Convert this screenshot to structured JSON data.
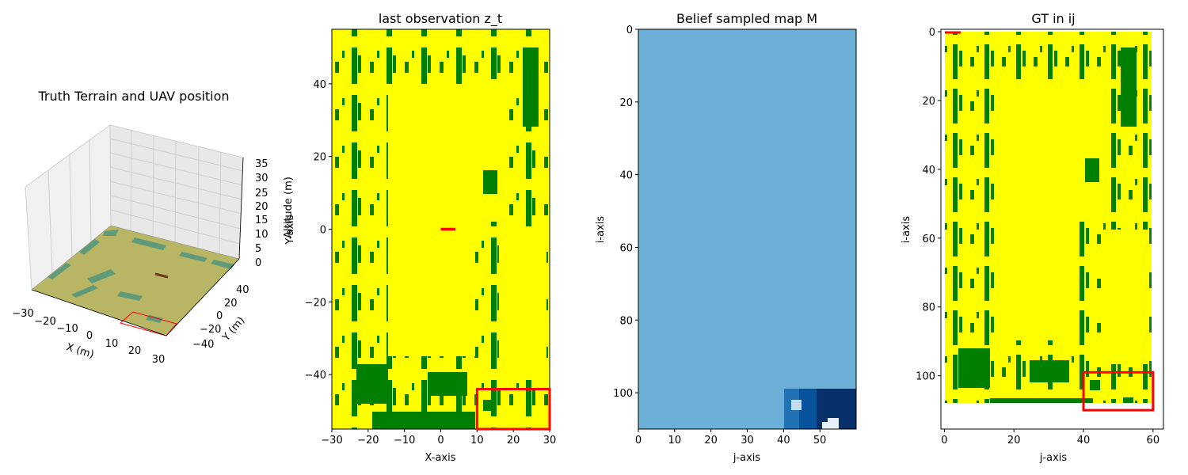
{
  "colors": {
    "free": "#ffff00",
    "tree": "#007f00",
    "path": "#ff0000",
    "belief_mid": "#6baed6",
    "belief_dark1": "#2171b5",
    "belief_dark2": "#08519c",
    "belief_dark3": "#08306b",
    "belief_light": "#c6dbef"
  },
  "chart_data": [
    {
      "type": "surface3d",
      "title": "Truth Terrain and UAV position",
      "xlabel": "X (m)",
      "ylabel": "Y (m)",
      "zlabel": "Altitude (m)",
      "xticks": [
        "−30",
        "−20",
        "−10",
        "0",
        "10",
        "20",
        "30"
      ],
      "yticks": [
        "−40",
        "−20",
        "0",
        "20",
        "40"
      ],
      "zticks": [
        "0",
        "5",
        "10",
        "15",
        "20",
        "25",
        "30",
        "35"
      ],
      "xlim": [
        -30,
        30
      ],
      "ylim": [
        -55,
        55
      ],
      "zlim": [
        0,
        35
      ]
    },
    {
      "type": "heatmap",
      "title": "last observation z_t",
      "xlabel": "X-axis",
      "ylabel": "Y-axis",
      "xticks": [
        "−30",
        "−20",
        "−10",
        "0",
        "10",
        "20",
        "30"
      ],
      "yticks": [
        "40",
        "20",
        "0",
        "−20",
        "−40"
      ],
      "xlim": [
        -30,
        30
      ],
      "ylim": [
        -55,
        55
      ],
      "uav_segment": {
        "x": [
          0,
          4
        ],
        "y": [
          0,
          0
        ]
      },
      "fov_box": {
        "x": [
          10,
          30
        ],
        "y": [
          -55,
          -44
        ]
      }
    },
    {
      "type": "heatmap",
      "title": "Belief sampled map M",
      "xlabel": "j-axis",
      "ylabel": "i-axis",
      "xticks": [
        "0",
        "10",
        "20",
        "30",
        "40",
        "50"
      ],
      "yticks": [
        "0",
        "20",
        "40",
        "60",
        "80",
        "100"
      ],
      "xlim": [
        0,
        60
      ],
      "ylim": [
        0,
        110
      ]
    },
    {
      "type": "heatmap",
      "title": "GT in ij",
      "xlabel": "j-axis",
      "ylabel": "i-axis",
      "xticks": [
        "0",
        "20",
        "40",
        "60"
      ],
      "yticks": [
        "0",
        "20",
        "40",
        "60",
        "80",
        "100"
      ],
      "xlim": [
        0,
        60
      ],
      "ylim": [
        0,
        110
      ],
      "fov_box": {
        "j": [
          40,
          60
        ],
        "i": [
          99,
          110
        ]
      }
    }
  ]
}
